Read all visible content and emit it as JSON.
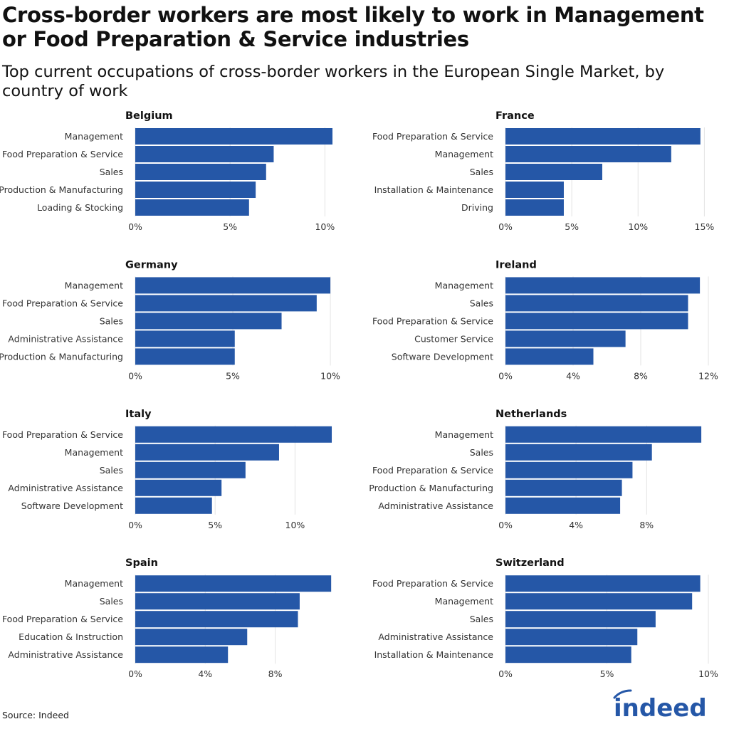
{
  "title": "Cross-border workers are most likely to work in Management or Food Preparation & Service industries",
  "subtitle": "Top current occupations of cross-border workers in the European Single Market, by country of work",
  "source": "Source: Indeed",
  "logo": "indeed",
  "colors": {
    "bar": "#2557a7",
    "grid": "#e3e3e3",
    "logo": "#2557a7"
  },
  "chart_data": [
    {
      "type": "bar",
      "orientation": "horizontal",
      "title": "Belgium",
      "categories": [
        "Management",
        "Food Preparation & Service",
        "Sales",
        "Production & Manufacturing",
        "Loading & Stocking"
      ],
      "values": [
        10.4,
        7.3,
        6.9,
        6.35,
        6.0
      ],
      "xticks": [
        0,
        5,
        10
      ],
      "tick_labels": [
        "0%",
        "5%",
        "10%"
      ],
      "xlim": [
        0,
        10.7
      ],
      "unit": "%",
      "grid": true
    },
    {
      "type": "bar",
      "orientation": "horizontal",
      "title": "France",
      "categories": [
        "Food Preparation & Service",
        "Management",
        "Sales",
        "Installation & Maintenance",
        "Driving"
      ],
      "values": [
        14.7,
        12.5,
        7.3,
        4.4,
        4.4
      ],
      "xticks": [
        0,
        5,
        10,
        15
      ],
      "tick_labels": [
        "0%",
        "5%",
        "10%",
        "15%"
      ],
      "xlim": [
        0,
        15.3
      ],
      "unit": "%",
      "grid": true
    },
    {
      "type": "bar",
      "orientation": "horizontal",
      "title": "Germany",
      "categories": [
        "Management",
        "Food Preparation & Service",
        "Sales",
        "Administrative Assistance",
        "Production & Manufacturing"
      ],
      "values": [
        10.0,
        9.3,
        7.5,
        5.1,
        5.1
      ],
      "xticks": [
        0,
        5,
        10
      ],
      "tick_labels": [
        "0%",
        "5%",
        "10%"
      ],
      "xlim": [
        0,
        10.4
      ],
      "unit": "%",
      "grid": true
    },
    {
      "type": "bar",
      "orientation": "horizontal",
      "title": "Ireland",
      "categories": [
        "Management",
        "Sales",
        "Food Preparation & Service",
        "Customer Service",
        "Software Development"
      ],
      "values": [
        11.5,
        10.8,
        10.8,
        7.1,
        5.2
      ],
      "xticks": [
        0,
        4,
        8,
        12
      ],
      "tick_labels": [
        "0%",
        "4%",
        "8%",
        "12%"
      ],
      "xlim": [
        0,
        12.0
      ],
      "unit": "%",
      "grid": true
    },
    {
      "type": "bar",
      "orientation": "horizontal",
      "title": "Italy",
      "categories": [
        "Food Preparation & Service",
        "Management",
        "Sales",
        "Administrative Assistance",
        "Software Development"
      ],
      "values": [
        12.3,
        9.0,
        6.9,
        5.4,
        4.8
      ],
      "xticks": [
        0,
        5,
        10
      ],
      "tick_labels": [
        "0%",
        "5%",
        "10%"
      ],
      "xlim": [
        0,
        12.7
      ],
      "unit": "%",
      "grid": true
    },
    {
      "type": "bar",
      "orientation": "horizontal",
      "title": "Netherlands",
      "categories": [
        "Management",
        "Sales",
        "Food Preparation & Service",
        "Production & Manufacturing",
        "Administrative Assistance"
      ],
      "values": [
        11.1,
        8.3,
        7.2,
        6.6,
        6.5
      ],
      "xticks": [
        0,
        4,
        8
      ],
      "tick_labels": [
        "0%",
        "4%",
        "8%"
      ],
      "xlim": [
        0,
        11.5
      ],
      "unit": "%",
      "grid": true
    },
    {
      "type": "bar",
      "orientation": "horizontal",
      "title": "Spain",
      "categories": [
        "Management",
        "Sales",
        "Food Preparation & Service",
        "Education & Instruction",
        "Administrative Assistance"
      ],
      "values": [
        11.2,
        9.4,
        9.3,
        6.4,
        5.3
      ],
      "xticks": [
        0,
        4,
        8
      ],
      "tick_labels": [
        "0%",
        "4%",
        "8%"
      ],
      "xlim": [
        0,
        11.6
      ],
      "unit": "%",
      "grid": true
    },
    {
      "type": "bar",
      "orientation": "horizontal",
      "title": "Switzerland",
      "categories": [
        "Food Preparation & Service",
        "Management",
        "Sales",
        "Administrative Assistance",
        "Installation & Maintenance"
      ],
      "values": [
        9.6,
        9.2,
        7.4,
        6.5,
        6.2
      ],
      "xticks": [
        0,
        5,
        10
      ],
      "tick_labels": [
        "0%",
        "5%",
        "10%"
      ],
      "xlim": [
        0,
        10.0
      ],
      "unit": "%",
      "grid": true
    }
  ]
}
